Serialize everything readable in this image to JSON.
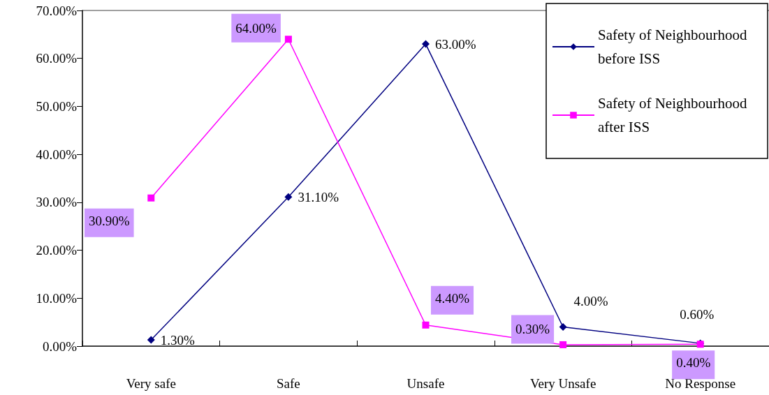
{
  "chart_data": {
    "type": "line",
    "categories": [
      "Very safe",
      "Safe",
      "Unsafe",
      "Very Unsafe",
      "No Response"
    ],
    "series": [
      {
        "name": "Safety of Neighbourhood before ISS",
        "color": "#000080",
        "values": [
          1.3,
          31.1,
          63.0,
          4.0,
          0.6
        ],
        "value_labels": [
          "1.30%",
          "31.10%",
          "63.00%",
          "4.00%",
          "0.60%"
        ],
        "marker": "diamond"
      },
      {
        "name": "Safety of Neighbourhood after ISS",
        "color": "#ff00ff",
        "values": [
          30.9,
          64.0,
          4.4,
          0.3,
          0.4
        ],
        "value_labels": [
          "30.90%",
          "64.00%",
          "4.40%",
          "0.30%",
          "0.40%"
        ],
        "marker": "square"
      }
    ],
    "ylim": [
      0,
      70
    ],
    "yticks": [
      {
        "value": 0,
        "label": "0.00%"
      },
      {
        "value": 10,
        "label": "10.00%"
      },
      {
        "value": 20,
        "label": "20.00%"
      },
      {
        "value": 30,
        "label": "30.00%"
      },
      {
        "value": 40,
        "label": "40.00%"
      },
      {
        "value": 50,
        "label": "50.00%"
      },
      {
        "value": 60,
        "label": "60.00%"
      },
      {
        "value": 70,
        "label": "70.00%"
      }
    ],
    "grid": false,
    "legend": "top right",
    "line_style": "solid"
  }
}
